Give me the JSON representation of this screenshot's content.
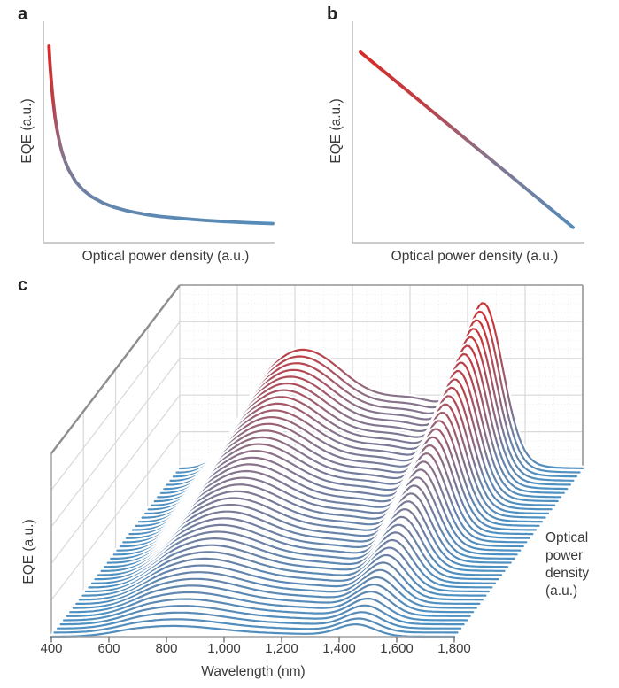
{
  "figure": {
    "background": "#ffffff",
    "panels": [
      {
        "id": "a",
        "letter": "a",
        "xlabel": "Optical power density (a.u.)",
        "ylabel": "EQE (a.u.)"
      },
      {
        "id": "b",
        "letter": "b",
        "xlabel": "Optical power density (a.u.)",
        "ylabel": "EQE (a.u.)"
      },
      {
        "id": "c",
        "letter": "c",
        "xlabel": "Wavelength (nm)",
        "ylabel": "EQE (a.u.)",
        "zlabel": "Optical power density (a.u.)"
      }
    ],
    "colormap": {
      "encoding": "EQE value: blue = low, red = high",
      "stops": [
        [
          0,
          "#4d90c1"
        ],
        [
          0.45,
          "#8a7288"
        ],
        [
          0.7,
          "#bc4048"
        ],
        [
          1,
          "#d62b28"
        ]
      ]
    }
  },
  "chart_data": [
    {
      "panel": "a",
      "type": "line",
      "title": "",
      "xlabel": "Optical power density (a.u.)",
      "ylabel": "EQE (a.u.)",
      "x_range": [
        0,
        1
      ],
      "y_range": [
        0,
        1
      ],
      "axis_units": "arbitrary (schematic, no ticks)",
      "shape": "hyperbolic decay: EQE falls steeply then saturates at low plateau",
      "color_encoding": "line colored by EQE value (red high to blue low)",
      "v_max": 0.96,
      "points": [
        [
          0.013,
          0.96
        ],
        [
          0.016,
          0.893
        ],
        [
          0.02,
          0.83
        ],
        [
          0.025,
          0.757
        ],
        [
          0.03,
          0.697
        ],
        [
          0.04,
          0.601
        ],
        [
          0.05,
          0.53
        ],
        [
          0.06,
          0.474
        ],
        [
          0.07,
          0.43
        ],
        [
          0.085,
          0.378
        ],
        [
          0.1,
          0.338
        ],
        [
          0.13,
          0.28
        ],
        [
          0.16,
          0.241
        ],
        [
          0.2,
          0.204
        ],
        [
          0.25,
          0.173
        ],
        [
          0.3,
          0.151
        ],
        [
          0.35,
          0.135
        ],
        [
          0.4,
          0.123
        ],
        [
          0.45,
          0.113
        ],
        [
          0.5,
          0.105
        ],
        [
          0.6,
          0.094
        ],
        [
          0.7,
          0.085
        ],
        [
          0.8,
          0.078
        ],
        [
          0.9,
          0.073
        ],
        [
          1.0,
          0.069
        ]
      ]
    },
    {
      "panel": "b",
      "type": "line",
      "title": "",
      "xlabel": "Optical power density (a.u.)",
      "ylabel": "EQE (a.u.)",
      "x_range": [
        0,
        1
      ],
      "y_range": [
        0,
        1
      ],
      "axis_units": "arbitrary (schematic, no ticks)",
      "shape": "linear decrease",
      "color_encoding": "line colored by EQE value (red high to blue low)",
      "v_max": 0.93,
      "points": [
        [
          0.0,
          0.93
        ],
        [
          0.1,
          0.842
        ],
        [
          0.2,
          0.754
        ],
        [
          0.3,
          0.666
        ],
        [
          0.4,
          0.578
        ],
        [
          0.5,
          0.49
        ],
        [
          0.6,
          0.402
        ],
        [
          0.7,
          0.314
        ],
        [
          0.8,
          0.226
        ],
        [
          0.9,
          0.138
        ],
        [
          1.0,
          0.05
        ]
      ]
    },
    {
      "panel": "c",
      "type": "3d-waterfall",
      "title": "",
      "xlabel": "Wavelength (nm)",
      "ylabel": "EQE (a.u.)",
      "zlabel": "Optical power density (a.u.)",
      "zlabel_lines": [
        "Optical",
        "power",
        "density",
        "(a.u.)"
      ],
      "x_range": [
        400,
        1800
      ],
      "x_ticks": [
        400,
        600,
        800,
        1000,
        1200,
        1400,
        1600,
        1800
      ],
      "x_tick_labels": [
        "400",
        "600",
        "800",
        "1,000",
        "1,200",
        "1,400",
        "1,600",
        "1,800"
      ],
      "n_curves": 42,
      "depth_axis": "optical power density increases from front (blue, low EQE) to back (red, high EQE)",
      "color_encoding": "each curve colored pointwise by local EQE value (blue low, red high)",
      "v_max": 0.9,
      "onset_envelope": {
        "type": "smoothstep",
        "start_nm": 400,
        "end_nm": 700
      },
      "spectral_components": [
        {
          "center_nm": 820,
          "sigma_nm": 260,
          "amp_front": 0.058,
          "amp_back": 0.64,
          "growth_pow": 1.0
        },
        {
          "center_nm": 1250,
          "sigma_nm": 220,
          "amp_front": 0.012,
          "amp_back": 0.33,
          "growth_pow": 1.2
        },
        {
          "center_nm": 1460,
          "sigma_nm": 90,
          "amp_front": 0.062,
          "amp_back": 0.765,
          "growth_pow": 1.2
        }
      ],
      "amplitude_rule": "amp(f) = amp_front + (amp_back - amp_front) * f^growth_pow, f = curve index / (n_curves-1)",
      "features": "broad EQE hump near 800 nm, shallow valley near 1,150 nm, sharp peak near 1,460 nm; all grow with optical power density"
    }
  ]
}
